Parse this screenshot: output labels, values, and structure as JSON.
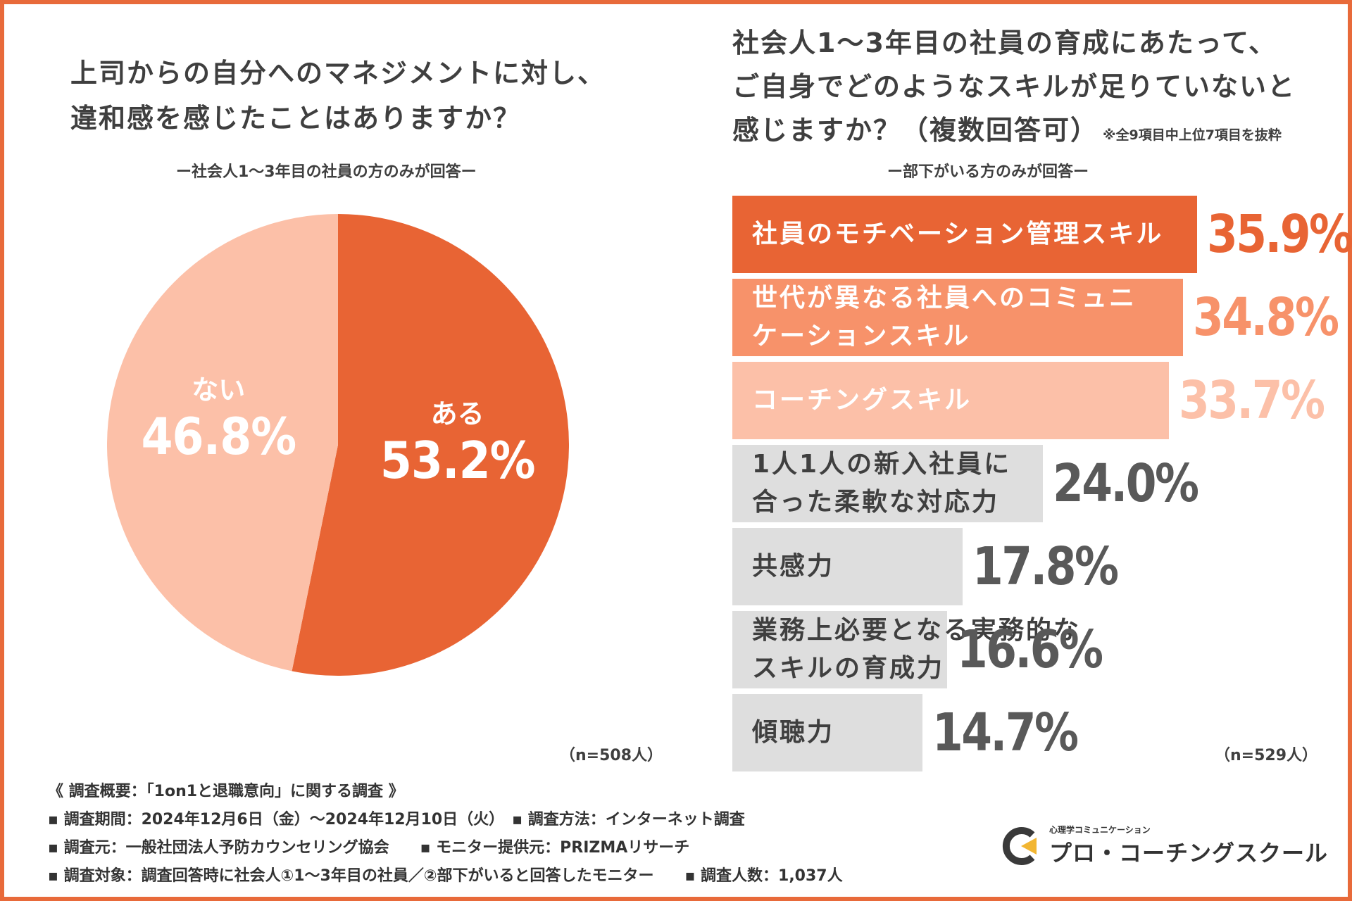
{
  "left": {
    "title_line1": "上司からの自分へのマネジメントに対し、",
    "title_line2": "違和感を感じたことはありますか？",
    "subtitle": "ー社会人1〜3年目の社員の方のみが回答ー",
    "n": "（n=508人）"
  },
  "right": {
    "title_line1": "社会人1〜3年目の社員の育成にあたって、",
    "title_line2": "ご自身でどのようなスキルが足りていないと",
    "title_line3": "感じますか？（複数回答可）",
    "note": "※全9項目中上位7項目を抜粋",
    "subtitle": "ー部下がいる方のみが回答ー",
    "n": "（n=529人）"
  },
  "colors": {
    "accent": "#e86434",
    "medium": "#f7926a",
    "light": "#fcc0a8",
    "gray": "#dedede",
    "text": "#3f3f3f",
    "val_gray": "#595959"
  },
  "chart_data": [
    {
      "type": "pie",
      "title": "上司からの自分へのマネジメントに対し、違和感を感じたことはありますか？",
      "slices": [
        {
          "label": "ある",
          "value": 53.2,
          "display": "53.2%"
        },
        {
          "label": "ない",
          "value": 46.8,
          "display": "46.8%"
        }
      ]
    },
    {
      "type": "bar",
      "orientation": "horizontal",
      "title": "社会人1〜3年目の社員の育成にあたって、ご自身でどのようなスキルが足りていないと感じますか？（複数回答可）",
      "categories": [
        "社員のモチベーション管理スキル",
        "世代が異なる社員へのコミュニケーションスキル",
        "コーチングスキル",
        "1人1人の新入社員に合った柔軟な対応力",
        "共感力",
        "業務上必要となる実務的なスキルの育成力",
        "傾聴力"
      ],
      "label_lines": [
        [
          "社員のモチベーション管理スキル"
        ],
        [
          "世代が異なる社員へのコミュニ",
          "ケーションスキル"
        ],
        [
          "コーチングスキル"
        ],
        [
          "1人1人の新入社員に",
          "合った柔軟な対応力"
        ],
        [
          "共感力"
        ],
        [
          "業務上必要となる実務的な",
          "スキルの育成力"
        ],
        [
          "傾聴力"
        ]
      ],
      "values": [
        35.9,
        34.8,
        33.7,
        24.0,
        17.8,
        16.6,
        14.7
      ],
      "displays": [
        "35.9%",
        "34.8%",
        "33.7%",
        "24.0%",
        "17.8%",
        "16.6%",
        "14.7%"
      ]
    }
  ],
  "footer": {
    "line1": "《 調査概要：「1on1と退職意向」に関する調査 》",
    "line2": "▪ 調査期間：2024年12月6日（金）〜2024年12月10日（火）　▪ 調査方法：インターネット調査",
    "line3": "▪ 調査元：一般社団法人予防カウンセリング協会　　▪ モニター提供元：PRIZMAリサーチ",
    "line4": "▪ 調査対象：調査回答時に社会人①1〜3年目の社員／②部下がいると回答したモニター　　▪ 調査人数：1,037人"
  },
  "logo": {
    "small": "心理学コミュニケーション",
    "main": "プロ・コーチングスクール"
  }
}
